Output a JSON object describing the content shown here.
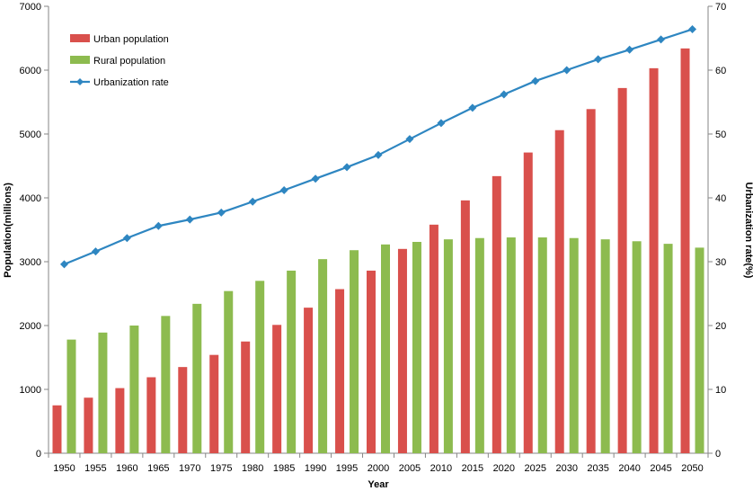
{
  "chart_data": {
    "type": "bar",
    "xlabel": "Year",
    "ylabel": "Population(millions)",
    "y2label": "Urbanization rate(%)",
    "ylim": [
      0,
      7000
    ],
    "y2lim": [
      0,
      70
    ],
    "yticks": [
      0,
      1000,
      2000,
      3000,
      4000,
      5000,
      6000,
      7000
    ],
    "y2ticks": [
      0,
      10,
      20,
      30,
      40,
      50,
      60,
      70
    ],
    "categories": [
      "1950",
      "1955",
      "1960",
      "1965",
      "1970",
      "1975",
      "1980",
      "1985",
      "1990",
      "1995",
      "2000",
      "2005",
      "2010",
      "2015",
      "2020",
      "2025",
      "2030",
      "2035",
      "2040",
      "2045",
      "2050"
    ],
    "grid": false,
    "legend_position": "top-left",
    "series": [
      {
        "name": "Urban population",
        "kind": "bar",
        "axis": "left",
        "color": "#d9504c",
        "values": [
          750,
          870,
          1020,
          1190,
          1350,
          1540,
          1750,
          2010,
          2280,
          2570,
          2860,
          3200,
          3580,
          3960,
          4340,
          4710,
          5060,
          5390,
          5720,
          6030,
          6340
        ]
      },
      {
        "name": "Rural population",
        "kind": "bar",
        "axis": "left",
        "color": "#8dbb4f",
        "values": [
          1780,
          1890,
          2000,
          2150,
          2340,
          2540,
          2700,
          2860,
          3040,
          3180,
          3270,
          3310,
          3350,
          3370,
          3380,
          3380,
          3370,
          3350,
          3320,
          3280,
          3220
        ]
      },
      {
        "name": "Urbanization rate",
        "kind": "line",
        "axis": "right",
        "color": "#2e86c1",
        "values": [
          29.6,
          31.6,
          33.7,
          35.6,
          36.6,
          37.7,
          39.4,
          41.2,
          43.0,
          44.8,
          46.7,
          49.2,
          51.7,
          54.1,
          56.2,
          58.3,
          60.0,
          61.7,
          63.2,
          64.8,
          66.4
        ]
      }
    ]
  }
}
